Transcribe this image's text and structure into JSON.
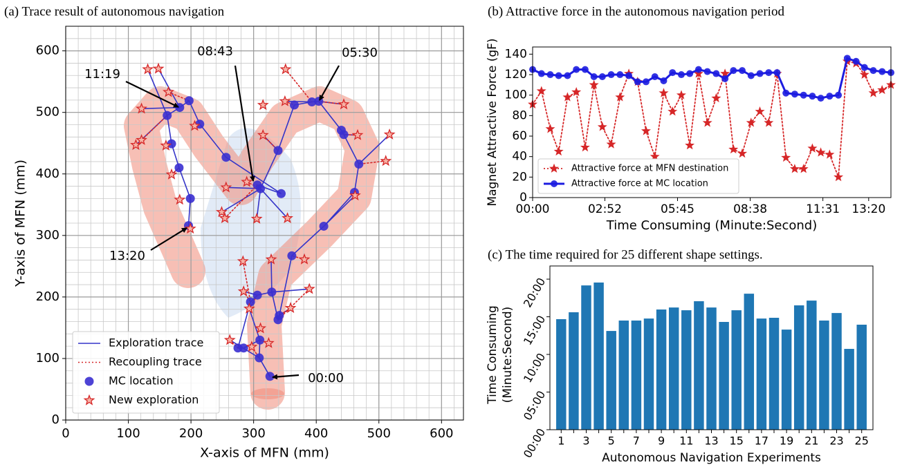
{
  "chart_data": [
    {
      "type": "line",
      "title": "(a) Trace result of autonomous navigation",
      "xlabel": "X-axis of MFN (mm)",
      "ylabel": "Y-axis of MFN (mm)",
      "xlim": [
        0,
        635
      ],
      "ylim": [
        0,
        640
      ],
      "xticks": [
        0,
        100,
        200,
        300,
        400,
        500,
        600
      ],
      "yticks": [
        0,
        100,
        200,
        300,
        400,
        500,
        600
      ],
      "grid": true,
      "minor_grid_step": 20,
      "legend": "lower left",
      "annotations": [
        "11:19",
        "08:43",
        "05:30",
        "13:20",
        "00:00"
      ],
      "series": [
        {
          "name": "Exploration trace",
          "color": "#3434c8",
          "linestyle": "solid",
          "x": [
            326,
            309,
            310,
            284,
            275,
            295,
            306,
            329,
            339,
            341,
            361,
            412,
            461,
            468,
            444,
            440,
            404,
            393,
            365,
            339,
            311,
            306,
            344,
            256,
            214,
            197,
            182,
            162,
            169,
            181,
            199,
            196,
            null,
            309,
            262,
            null,
            310,
            293,
            null,
            306,
            284,
            null,
            329,
            328,
            null,
            329,
            389,
            null,
            341,
            359,
            null,
            412,
            462,
            null,
            468,
            517,
            null,
            444,
            466,
            null,
            404,
            444,
            null,
            393,
            350,
            null,
            339,
            315,
            null,
            311,
            256,
            null,
            311,
            249,
            null,
            311,
            305,
            null,
            311,
            354,
            null,
            182,
            148,
            null,
            182,
            121,
            null,
            162,
            131,
            null,
            162,
            112,
            null,
            169,
            160,
            null,
            181,
            169
          ],
          "y": [
            71,
            101,
            130,
            117,
            117,
            192,
            203,
            208,
            163,
            170,
            267,
            315,
            370,
            416,
            464,
            471,
            518,
            517,
            512,
            438,
            376,
            382,
            368,
            427,
            481,
            519,
            508,
            495,
            449,
            410,
            360,
            316,
            null,
            101,
            130,
            null,
            130,
            181,
            null,
            203,
            209,
            null,
            208,
            261,
            null,
            208,
            213,
            null,
            170,
            182,
            null,
            315,
            365,
            null,
            416,
            464,
            null,
            464,
            463,
            null,
            518,
            513,
            null,
            517,
            518,
            null,
            438,
            463,
            null,
            376,
            378,
            null,
            376,
            338,
            null,
            376,
            327,
            null,
            376,
            328,
            null,
            508,
            571,
            null,
            508,
            506,
            null,
            495,
            570,
            null,
            495,
            447,
            null,
            449,
            446,
            null,
            410,
            399
          ]
        },
        {
          "name": "Recoupling trace",
          "color": "#d62728",
          "linestyle": "dotted",
          "x": [
            262,
            275,
            null,
            293,
            306,
            null,
            284,
            295,
            null,
            389,
            339,
            null,
            359,
            341,
            null,
            381,
            361,
            null,
            462,
            461,
            null,
            511,
            468,
            null,
            466,
            444,
            null,
            444,
            404,
            null,
            350,
            365,
            null,
            315,
            339,
            null,
            289,
            311,
            null,
            254,
            306,
            null,
            351,
            393,
            null,
            164,
            197,
            null,
            121,
            162,
            null,
            169,
            181,
            null,
            199,
            196,
            null,
            283,
            295,
            null,
            324,
            310,
            null,
            297,
            309
          ],
          "y": [
            130,
            117,
            null,
            181,
            203,
            null,
            209,
            192,
            null,
            213,
            163,
            null,
            182,
            170,
            null,
            261,
            267,
            null,
            365,
            370,
            null,
            421,
            416,
            null,
            463,
            464,
            null,
            513,
            518,
            null,
            518,
            512,
            null,
            463,
            438,
            null,
            387,
            376,
            null,
            328,
            382,
            null,
            570,
            517,
            null,
            533,
            519,
            null,
            455,
            495,
            null,
            399,
            410,
            null,
            311,
            316,
            null,
            258,
            192,
            null,
            125,
            130,
            null,
            119,
            101
          ]
        },
        {
          "name": "MC location",
          "color": "#3a2fd0",
          "marker": "circle",
          "x": [
            326,
            309,
            310,
            284,
            275,
            295,
            306,
            329,
            339,
            341,
            361,
            412,
            461,
            468,
            444,
            440,
            404,
            393,
            365,
            339,
            311,
            306,
            344,
            256,
            214,
            197,
            182,
            162,
            169,
            181,
            199,
            196
          ],
          "y": [
            71,
            101,
            130,
            117,
            117,
            192,
            203,
            208,
            163,
            170,
            267,
            315,
            370,
            416,
            464,
            471,
            518,
            517,
            512,
            438,
            376,
            382,
            368,
            427,
            481,
            519,
            508,
            495,
            449,
            410,
            360,
            316
          ]
        },
        {
          "name": "New exploration",
          "color": "#d62728",
          "facecolor": "#f6b3a6",
          "marker": "star",
          "x": [
            324,
            311,
            297,
            262,
            293,
            283,
            328,
            381,
            389,
            359,
            284,
            462,
            511,
            517,
            466,
            444,
            351,
            350,
            315,
            315,
            256,
            249,
            254,
            354,
            305,
            289,
            131,
            148,
            164,
            121,
            112,
            121,
            160,
            169,
            182,
            199,
            206
          ],
          "y": [
            125,
            149,
            119,
            130,
            181,
            258,
            261,
            261,
            213,
            182,
            209,
            365,
            421,
            464,
            463,
            513,
            570,
            518,
            512,
            463,
            378,
            338,
            328,
            328,
            327,
            387,
            570,
            571,
            533,
            506,
            447,
            455,
            446,
            399,
            358,
            311,
            478
          ]
        }
      ]
    },
    {
      "type": "line",
      "title": "(b) Attractive force in the autonomous navigation period",
      "xlabel": "Time Consuming (Minute:Second)",
      "ylabel": "Magnet Attractive Force (gF)",
      "xlim": [
        0,
        853
      ],
      "ylim": [
        0,
        147
      ],
      "xticks": [
        {
          "value": 0,
          "label": "00:00"
        },
        {
          "value": 172,
          "label": "02:52"
        },
        {
          "value": 345,
          "label": "05:45"
        },
        {
          "value": 518,
          "label": "08:38"
        },
        {
          "value": 691,
          "label": "11:31"
        },
        {
          "value": 800,
          "label": "13:20"
        }
      ],
      "yticks": [
        0,
        20,
        40,
        60,
        80,
        100,
        120,
        140
      ],
      "grid": false,
      "legend": "lower left",
      "x": [
        0,
        21,
        42,
        62,
        83,
        104,
        125,
        146,
        166,
        187,
        208,
        229,
        250,
        270,
        291,
        312,
        333,
        354,
        374,
        395,
        416,
        437,
        458,
        478,
        499,
        520,
        541,
        562,
        582,
        603,
        624,
        645,
        666,
        686,
        707,
        728,
        749,
        770,
        790,
        811,
        832,
        853
      ],
      "series": [
        {
          "name": "Attractive force at MFN destination",
          "color": "#d62728",
          "linestyle": "dotted",
          "marker": "star",
          "values": [
            91,
            104,
            67,
            45,
            98,
            103,
            49,
            110,
            69,
            52,
            98,
            121,
            113,
            65,
            40,
            102,
            84,
            100,
            51,
            121,
            73,
            97,
            121,
            47,
            43,
            73,
            84,
            73,
            121,
            39,
            28,
            28,
            48,
            44,
            42,
            20,
            133,
            131,
            120,
            102,
            105,
            110
          ]
        },
        {
          "name": "Attractive force at MC location",
          "color": "#1c1ce0",
          "linestyle": "solid",
          "marker": "circle",
          "values": [
            125,
            121,
            120,
            119,
            119,
            125,
            125,
            118,
            118,
            120,
            120,
            119,
            113,
            113,
            118,
            114,
            122,
            120,
            121,
            125,
            123,
            121,
            116,
            124,
            124,
            119,
            121,
            122,
            122,
            102,
            101,
            100,
            99,
            97,
            99,
            100,
            136,
            133,
            127,
            124,
            123,
            122
          ]
        }
      ]
    },
    {
      "type": "bar",
      "title": "(c) The time required for 25 different shape settings.",
      "xlabel": "Autonomous Navigation Experiments",
      "ylabel": [
        "Time Consuming",
        "(Minute:Second)"
      ],
      "ylim": [
        0,
        1305
      ],
      "yticks": [
        {
          "value": 0,
          "label": "00:00"
        },
        {
          "value": 300,
          "label": "05:00"
        },
        {
          "value": 600,
          "label": "10:00"
        },
        {
          "value": 900,
          "label": "15:00"
        },
        {
          "value": 1200,
          "label": "20:00"
        }
      ],
      "color": "#1f77b4",
      "categories": [
        "1",
        null,
        "3",
        null,
        "5",
        null,
        "7",
        null,
        "9",
        null,
        "11",
        null,
        "13",
        null,
        "15",
        null,
        "17",
        null,
        "19",
        null,
        "21",
        null,
        "23",
        null,
        "25"
      ],
      "values": [
        881,
        936,
        1150,
        1173,
        787,
        870,
        870,
        886,
        958,
        974,
        952,
        1024,
        974,
        859,
        952,
        1084,
        886,
        892,
        798,
        991,
        1029,
        870,
        930,
        644,
        837
      ]
    }
  ]
}
